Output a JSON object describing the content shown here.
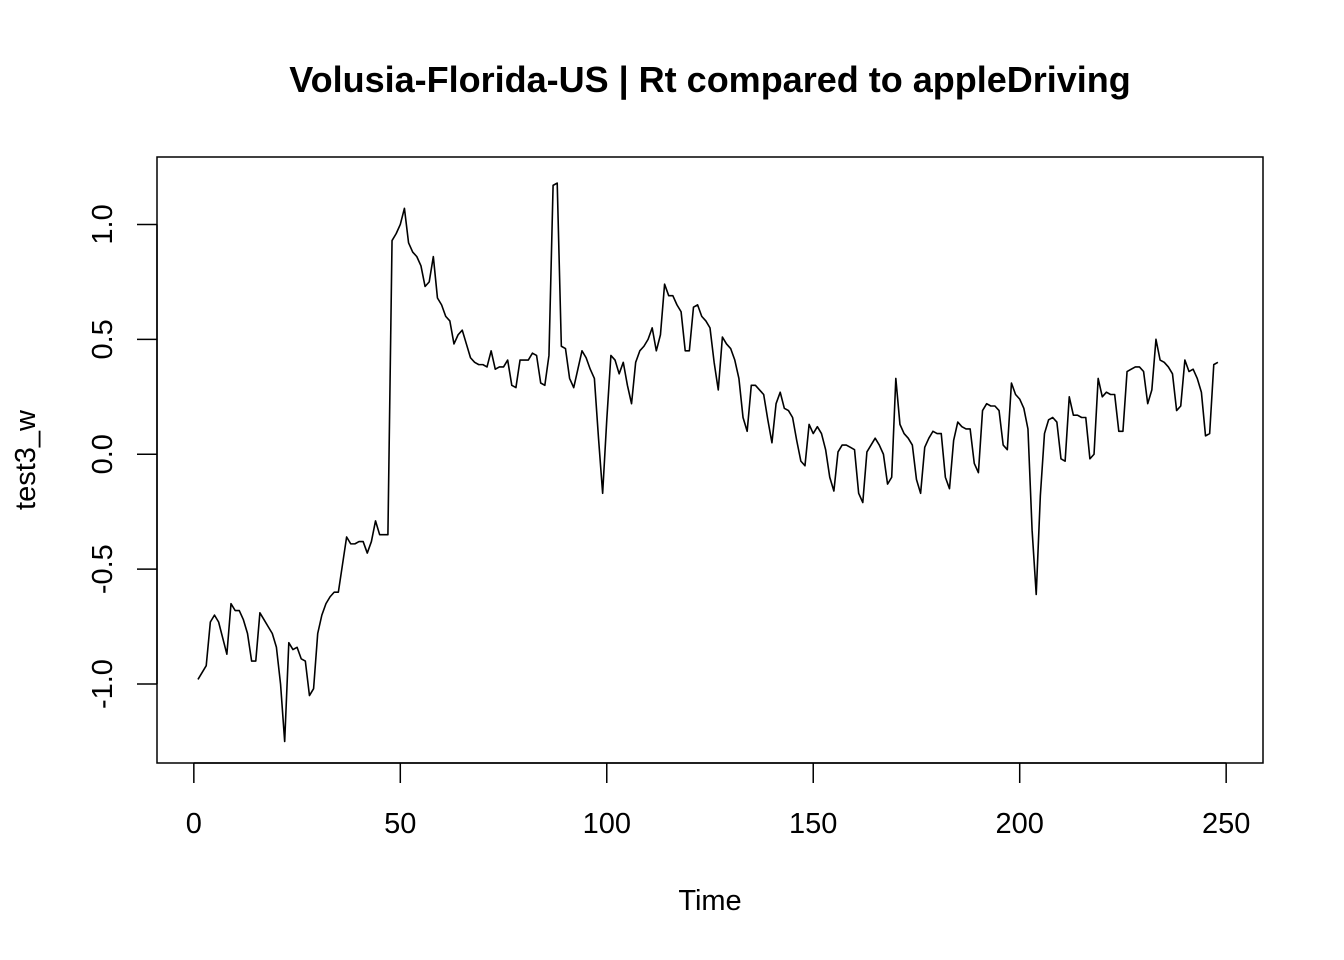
{
  "chart_data": {
    "type": "line",
    "title": "Volusia-Florida-US | Rt compared to appleDriving",
    "xlabel": "Time",
    "ylabel": "test3_w",
    "xlim": [
      -8.92,
      258.92
    ],
    "ylim": [
      -1.3435,
      1.2935
    ],
    "xticks": [
      0,
      50,
      100,
      150,
      200,
      250
    ],
    "yticks": [
      -1.0,
      -0.5,
      0.0,
      0.5,
      1.0
    ],
    "xtick_labels": [
      "0",
      "50",
      "100",
      "150",
      "200",
      "250"
    ],
    "ytick_labels": [
      "-1.0",
      "-0.5",
      "0.0",
      "0.5",
      "1.0"
    ],
    "grid": false,
    "legend": "none",
    "color": "#000000",
    "series": [
      {
        "x": [
          1,
          2,
          3,
          4,
          5,
          6,
          7,
          8,
          9,
          10,
          11,
          12,
          13,
          14,
          15,
          16,
          17,
          18,
          19,
          20,
          21,
          22,
          23,
          24,
          25,
          26,
          27,
          28,
          29,
          30,
          31,
          32,
          33,
          34,
          35,
          36,
          37,
          38,
          39,
          40,
          41,
          42,
          43,
          44,
          45,
          46,
          47,
          48,
          49,
          50,
          51,
          52,
          53,
          54,
          55,
          56,
          57,
          58,
          59,
          60,
          61,
          62,
          63,
          64,
          65,
          66,
          67,
          68,
          69,
          70,
          71,
          72,
          73,
          74,
          75,
          76,
          77,
          78,
          79,
          80,
          81,
          82,
          83,
          84,
          85,
          86,
          87,
          88,
          89,
          90,
          91,
          92,
          93,
          94,
          95,
          96,
          97,
          98,
          99,
          100,
          101,
          102,
          103,
          104,
          105,
          106,
          107,
          108,
          109,
          110,
          111,
          112,
          113,
          114,
          115,
          116,
          117,
          118,
          119,
          120,
          121,
          122,
          123,
          124,
          125,
          126,
          127,
          128,
          129,
          130,
          131,
          132,
          133,
          134,
          135,
          136,
          137,
          138,
          139,
          140,
          141,
          142,
          143,
          144,
          145,
          146,
          147,
          148,
          149,
          150,
          151,
          152,
          153,
          154,
          155,
          156,
          157,
          158,
          159,
          160,
          161,
          162,
          163,
          164,
          165,
          166,
          167,
          168,
          169,
          170,
          171,
          172,
          173,
          174,
          175,
          176,
          177,
          178,
          179,
          180,
          181,
          182,
          183,
          184,
          185,
          186,
          187,
          188,
          189,
          190,
          191,
          192,
          193,
          194,
          195,
          196,
          197,
          198,
          199,
          200,
          201,
          202,
          203,
          204,
          205,
          206,
          207,
          208,
          209,
          210,
          211,
          212,
          213,
          214,
          215,
          216,
          217,
          218,
          219,
          220,
          221,
          222,
          223,
          224,
          225,
          226,
          227,
          228,
          229,
          230,
          231,
          232,
          233,
          234,
          235,
          236,
          237,
          238,
          239,
          240,
          241,
          242,
          243,
          244,
          245,
          246,
          247,
          248
        ],
        "values": [
          -0.98,
          -0.95,
          -0.92,
          -0.73,
          -0.7,
          -0.73,
          -0.8,
          -0.87,
          -0.65,
          -0.68,
          -0.68,
          -0.72,
          -0.78,
          -0.9,
          -0.9,
          -0.69,
          -0.72,
          -0.75,
          -0.78,
          -0.84,
          -1.0,
          -1.25,
          -0.82,
          -0.85,
          -0.84,
          -0.89,
          -0.9,
          -1.05,
          -1.02,
          -0.78,
          -0.7,
          -0.65,
          -0.62,
          -0.6,
          -0.6,
          -0.48,
          -0.36,
          -0.39,
          -0.39,
          -0.38,
          -0.38,
          -0.43,
          -0.38,
          -0.29,
          -0.35,
          -0.35,
          -0.35,
          0.93,
          0.96,
          1.0,
          1.07,
          0.92,
          0.88,
          0.86,
          0.82,
          0.73,
          0.75,
          0.86,
          0.68,
          0.65,
          0.6,
          0.58,
          0.48,
          0.52,
          0.54,
          0.48,
          0.42,
          0.4,
          0.39,
          0.39,
          0.38,
          0.45,
          0.37,
          0.38,
          0.38,
          0.41,
          0.3,
          0.29,
          0.41,
          0.41,
          0.41,
          0.44,
          0.43,
          0.31,
          0.3,
          0.43,
          1.17,
          1.18,
          0.47,
          0.46,
          0.33,
          0.29,
          0.37,
          0.45,
          0.42,
          0.37,
          0.33,
          0.07,
          -0.17,
          0.15,
          0.43,
          0.41,
          0.35,
          0.4,
          0.3,
          0.22,
          0.4,
          0.45,
          0.47,
          0.5,
          0.55,
          0.45,
          0.52,
          0.74,
          0.69,
          0.69,
          0.65,
          0.62,
          0.45,
          0.45,
          0.64,
          0.65,
          0.6,
          0.58,
          0.55,
          0.4,
          0.28,
          0.51,
          0.48,
          0.46,
          0.41,
          0.33,
          0.16,
          0.1,
          0.3,
          0.3,
          0.28,
          0.26,
          0.15,
          0.05,
          0.22,
          0.27,
          0.2,
          0.19,
          0.16,
          0.06,
          -0.03,
          -0.05,
          0.13,
          0.09,
          0.12,
          0.09,
          0.02,
          -0.1,
          -0.16,
          0.01,
          0.04,
          0.04,
          0.03,
          0.02,
          -0.17,
          -0.21,
          0.01,
          0.04,
          0.07,
          0.04,
          0.0,
          -0.13,
          -0.1,
          0.33,
          0.13,
          0.09,
          0.07,
          0.04,
          -0.11,
          -0.17,
          0.03,
          0.07,
          0.1,
          0.09,
          0.09,
          -0.1,
          -0.15,
          0.06,
          0.14,
          0.12,
          0.11,
          0.11,
          -0.04,
          -0.08,
          0.19,
          0.22,
          0.21,
          0.21,
          0.19,
          0.04,
          0.02,
          0.31,
          0.26,
          0.24,
          0.2,
          0.11,
          -0.33,
          -0.61,
          -0.18,
          0.09,
          0.15,
          0.16,
          0.14,
          -0.02,
          -0.03,
          0.25,
          0.17,
          0.17,
          0.16,
          0.16,
          -0.02,
          0.0,
          0.33,
          0.25,
          0.27,
          0.26,
          0.26,
          0.1,
          0.1,
          0.36,
          0.37,
          0.38,
          0.38,
          0.36,
          0.22,
          0.28,
          0.5,
          0.41,
          0.4,
          0.38,
          0.35,
          0.19,
          0.21,
          0.41,
          0.36,
          0.37,
          0.33,
          0.27,
          0.08,
          0.09,
          0.39,
          0.4
        ]
      }
    ]
  }
}
